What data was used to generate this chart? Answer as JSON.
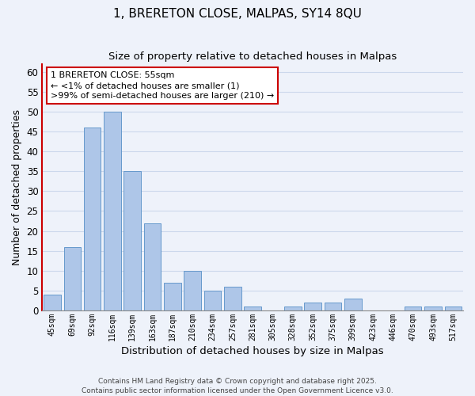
{
  "title": "1, BRERETON CLOSE, MALPAS, SY14 8QU",
  "subtitle": "Size of property relative to detached houses in Malpas",
  "xlabel": "Distribution of detached houses by size in Malpas",
  "ylabel": "Number of detached properties",
  "bar_labels": [
    "45sqm",
    "69sqm",
    "92sqm",
    "116sqm",
    "139sqm",
    "163sqm",
    "187sqm",
    "210sqm",
    "234sqm",
    "257sqm",
    "281sqm",
    "305sqm",
    "328sqm",
    "352sqm",
    "375sqm",
    "399sqm",
    "423sqm",
    "446sqm",
    "470sqm",
    "493sqm",
    "517sqm"
  ],
  "bar_values": [
    4,
    16,
    46,
    50,
    35,
    22,
    7,
    10,
    5,
    6,
    1,
    0,
    1,
    2,
    2,
    3,
    0,
    0,
    1,
    1,
    1
  ],
  "bar_color": "#aec6e8",
  "bar_edge_color": "#6699cc",
  "highlight_edge_color": "#cc0000",
  "ylim": [
    0,
    62
  ],
  "yticks": [
    0,
    5,
    10,
    15,
    20,
    25,
    30,
    35,
    40,
    45,
    50,
    55,
    60
  ],
  "annotation_box_text": "1 BRERETON CLOSE: 55sqm\n← <1% of detached houses are smaller (1)\n>99% of semi-detached houses are larger (210) →",
  "footer_text": "Contains HM Land Registry data © Crown copyright and database right 2025.\nContains public sector information licensed under the Open Government Licence v3.0.",
  "grid_color": "#ccd8ec",
  "background_color": "#eef2fa"
}
